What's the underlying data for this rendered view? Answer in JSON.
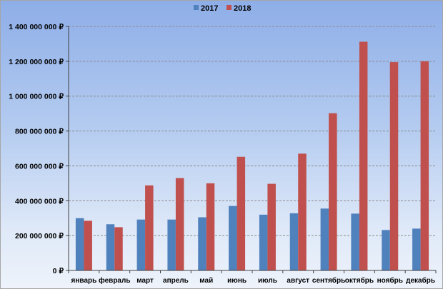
{
  "chart_data": {
    "type": "bar",
    "categories": [
      "январь",
      "февраль",
      "март",
      "апрель",
      "май",
      "июнь",
      "июль",
      "август",
      "сентябрь",
      "октябрь",
      "ноябрь",
      "декабрь"
    ],
    "series": [
      {
        "name": "2017",
        "color": "#4f81bd",
        "values": [
          300000000,
          265000000,
          292000000,
          292000000,
          305000000,
          370000000,
          320000000,
          328000000,
          355000000,
          326000000,
          232000000,
          240000000
        ]
      },
      {
        "name": "2018",
        "color": "#c0504d",
        "values": [
          285000000,
          248000000,
          488000000,
          530000000,
          500000000,
          652000000,
          497000000,
          670000000,
          902000000,
          1312000000,
          1195000000,
          1200000000
        ]
      }
    ],
    "ylim": [
      0,
      1400000000
    ],
    "yticks": [
      0,
      200000000,
      400000000,
      600000000,
      800000000,
      1000000000,
      1200000000,
      1400000000
    ],
    "ytick_labels": [
      "0 ₽",
      "200 000 000 ₽",
      "400 000 000 ₽",
      "600 000 000 ₽",
      "800 000 000 ₽",
      "1 000 000 000 ₽",
      "1 200 000 000 ₽",
      "1 400 000 000 ₽"
    ],
    "grid": true,
    "legend_position": "top-center"
  }
}
